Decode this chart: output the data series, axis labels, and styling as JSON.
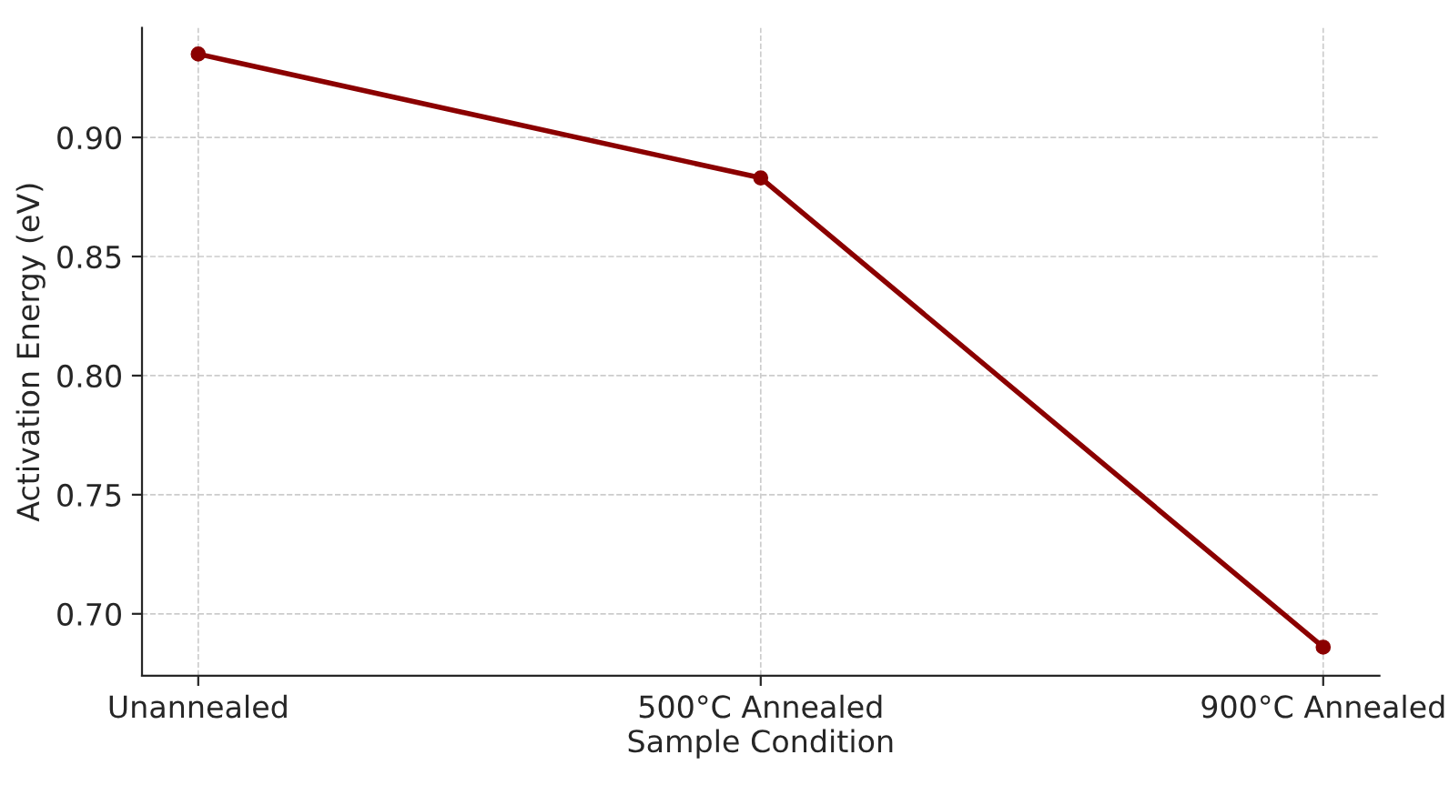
{
  "chart_data": {
    "type": "line",
    "xlabel": "Sample Condition",
    "ylabel": "Activation Energy (eV)",
    "categories": [
      "Unannealed",
      "500°C Annealed",
      "900°C Annealed"
    ],
    "series": [
      {
        "color": "#8b0000",
        "values": [
          0.935,
          0.883,
          0.686
        ]
      }
    ],
    "ylim": [
      0.674,
      0.946
    ],
    "yticks": [
      {
        "value": 0.7,
        "label": "0.70"
      },
      0.75,
      {
        "value": 0.8,
        "label": "0.80"
      },
      0.85,
      {
        "value": 0.9,
        "label": "0.90"
      }
    ],
    "grid": true,
    "marker": "circle",
    "line_style": "solid"
  }
}
